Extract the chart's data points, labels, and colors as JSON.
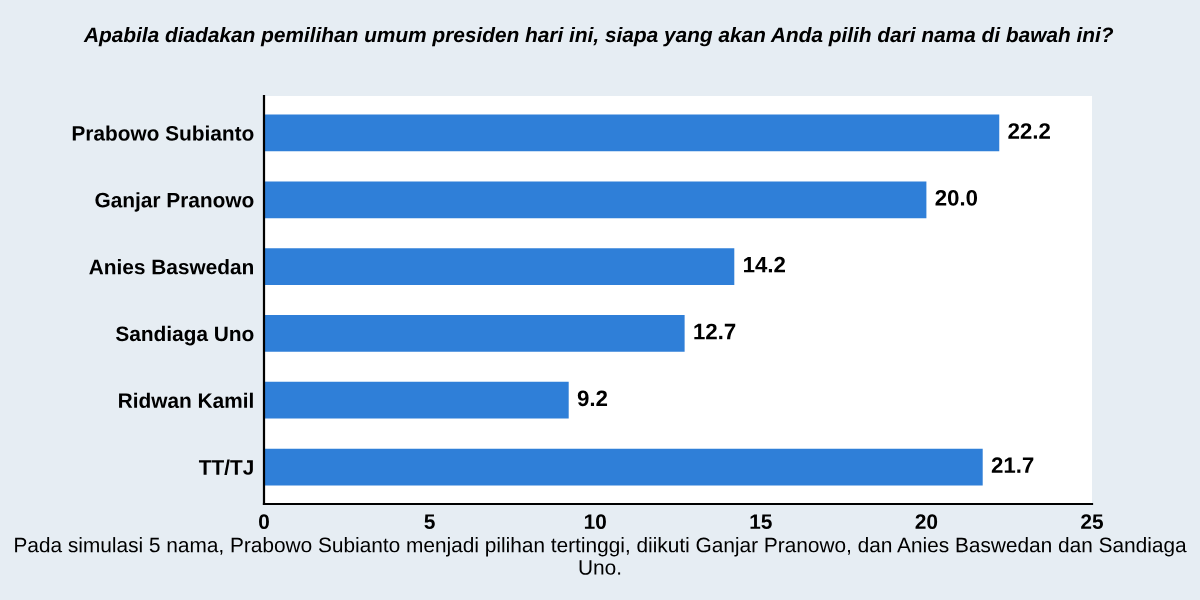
{
  "chart_data": {
    "type": "bar",
    "orientation": "horizontal",
    "title": "Apabila diadakan pemilihan umum presiden hari ini, siapa yang akan Anda pilih dari nama di bawah ini?",
    "categories": [
      "Prabowo Subianto",
      "Ganjar Pranowo",
      "Anies Baswedan",
      "Sandiaga Uno",
      "Ridwan Kamil",
      "TT/TJ"
    ],
    "values": [
      22.2,
      20.0,
      14.2,
      12.7,
      9.2,
      21.7
    ],
    "value_labels": [
      "22.2",
      "20.0",
      "14.2",
      "12.7",
      "9.2",
      "21.7"
    ],
    "color": "#2f7fd8",
    "xlim": [
      0,
      25
    ],
    "xticks": [
      0,
      5,
      10,
      15,
      20,
      25
    ],
    "grid": false,
    "annotations": [
      "Pada simulasi 5 nama, Prabowo Subianto menjadi pilihan tertinggi, diikuti Ganjar Pranowo, dan Anies Baswedan dan Sandiaga Uno."
    ]
  }
}
